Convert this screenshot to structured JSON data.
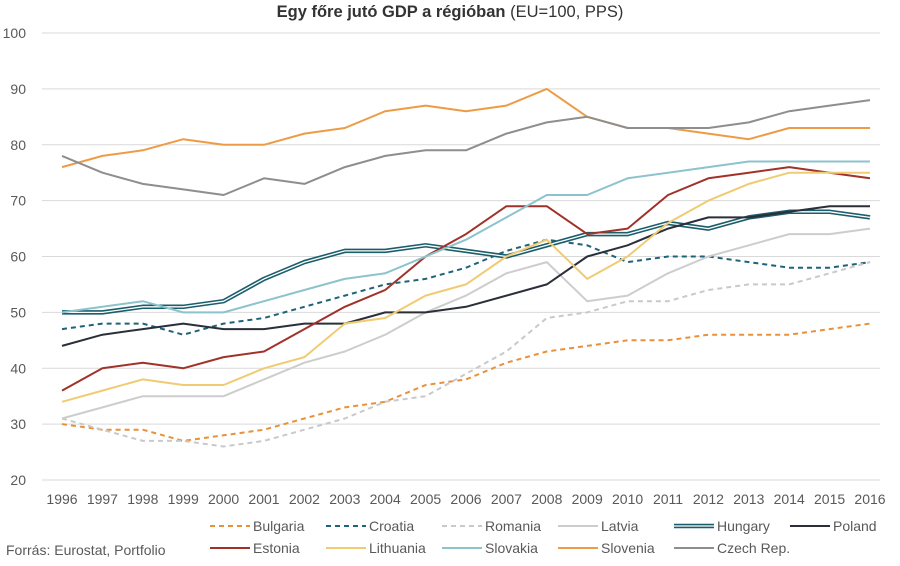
{
  "chart_data": {
    "type": "line",
    "title": "Egy főre jutó GDP a régióban",
    "subtitle": "(EU=100, PPS)",
    "xlabel": "",
    "ylabel": "",
    "ylim": [
      20,
      100
    ],
    "yticks": [
      20,
      30,
      40,
      50,
      60,
      70,
      80,
      90,
      100
    ],
    "grid": true,
    "legend_position": "bottom",
    "categories": [
      "1996",
      "1997",
      "1998",
      "1999",
      "2000",
      "2001",
      "2002",
      "2003",
      "2004",
      "2005",
      "2006",
      "2007",
      "2008",
      "2009",
      "2010",
      "2011",
      "2012",
      "2013",
      "2014",
      "2015",
      "2016"
    ],
    "series": [
      {
        "name": "Bulgaria",
        "color": "#E8913A",
        "style": "dashed",
        "values": [
          30,
          29,
          29,
          27,
          28,
          29,
          31,
          33,
          34,
          37,
          38,
          41,
          43,
          44,
          45,
          45,
          46,
          46,
          46,
          47,
          48
        ]
      },
      {
        "name": "Croatia",
        "color": "#1F6378",
        "style": "dashed",
        "values": [
          47,
          48,
          48,
          46,
          48,
          49,
          51,
          53,
          55,
          56,
          58,
          61,
          63,
          62,
          59,
          60,
          60,
          59,
          58,
          58,
          59
        ]
      },
      {
        "name": "Romania",
        "color": "#C9C9C9",
        "style": "dashed",
        "values": [
          31,
          29,
          27,
          27,
          26,
          27,
          29,
          31,
          34,
          35,
          39,
          43,
          49,
          50,
          52,
          52,
          54,
          55,
          55,
          57,
          59
        ]
      },
      {
        "name": "Latvia",
        "color": "#CDCDCD",
        "style": "solid",
        "values": [
          31,
          33,
          35,
          35,
          35,
          38,
          41,
          43,
          46,
          50,
          53,
          57,
          59,
          52,
          53,
          57,
          60,
          62,
          64,
          64,
          65
        ]
      },
      {
        "name": "Hungary",
        "color": "#1B5E6B",
        "style": "double",
        "values": [
          50,
          50,
          51,
          51,
          52,
          56,
          59,
          61,
          61,
          62,
          61,
          60,
          62,
          64,
          64,
          66,
          65,
          67,
          68,
          68,
          67
        ]
      },
      {
        "name": "Poland",
        "color": "#2B2F3A",
        "style": "solid",
        "values": [
          44,
          46,
          47,
          48,
          47,
          47,
          48,
          48,
          50,
          50,
          51,
          53,
          55,
          60,
          62,
          65,
          67,
          67,
          68,
          69,
          69
        ]
      },
      {
        "name": "Estonia",
        "color": "#A0322A",
        "style": "solid",
        "values": [
          36,
          40,
          41,
          40,
          42,
          43,
          47,
          51,
          54,
          60,
          64,
          69,
          69,
          64,
          65,
          71,
          74,
          75,
          76,
          75,
          74
        ]
      },
      {
        "name": "Lithuania",
        "color": "#F0CB72",
        "style": "solid",
        "values": [
          34,
          36,
          38,
          37,
          37,
          40,
          42,
          48,
          49,
          53,
          55,
          60,
          63,
          56,
          60,
          66,
          70,
          73,
          75,
          75,
          75
        ]
      },
      {
        "name": "Slovakia",
        "color": "#8CC3CC",
        "style": "solid",
        "values": [
          50,
          51,
          52,
          50,
          50,
          52,
          54,
          56,
          57,
          60,
          63,
          67,
          71,
          71,
          74,
          75,
          76,
          77,
          77,
          77,
          77
        ]
      },
      {
        "name": "Slovenia",
        "color": "#EE9B45",
        "style": "solid",
        "values": [
          76,
          78,
          79,
          81,
          80,
          80,
          82,
          83,
          86,
          87,
          86,
          87,
          90,
          85,
          83,
          83,
          82,
          81,
          83,
          83,
          83
        ]
      },
      {
        "name": "Czech Rep.",
        "color": "#8E8E8E",
        "style": "solid",
        "values": [
          78,
          75,
          73,
          72,
          71,
          74,
          73,
          76,
          78,
          79,
          79,
          82,
          84,
          85,
          83,
          83,
          83,
          84,
          86,
          87,
          88
        ]
      }
    ]
  },
  "source": "Forrás: Eurostat, Portfolio"
}
